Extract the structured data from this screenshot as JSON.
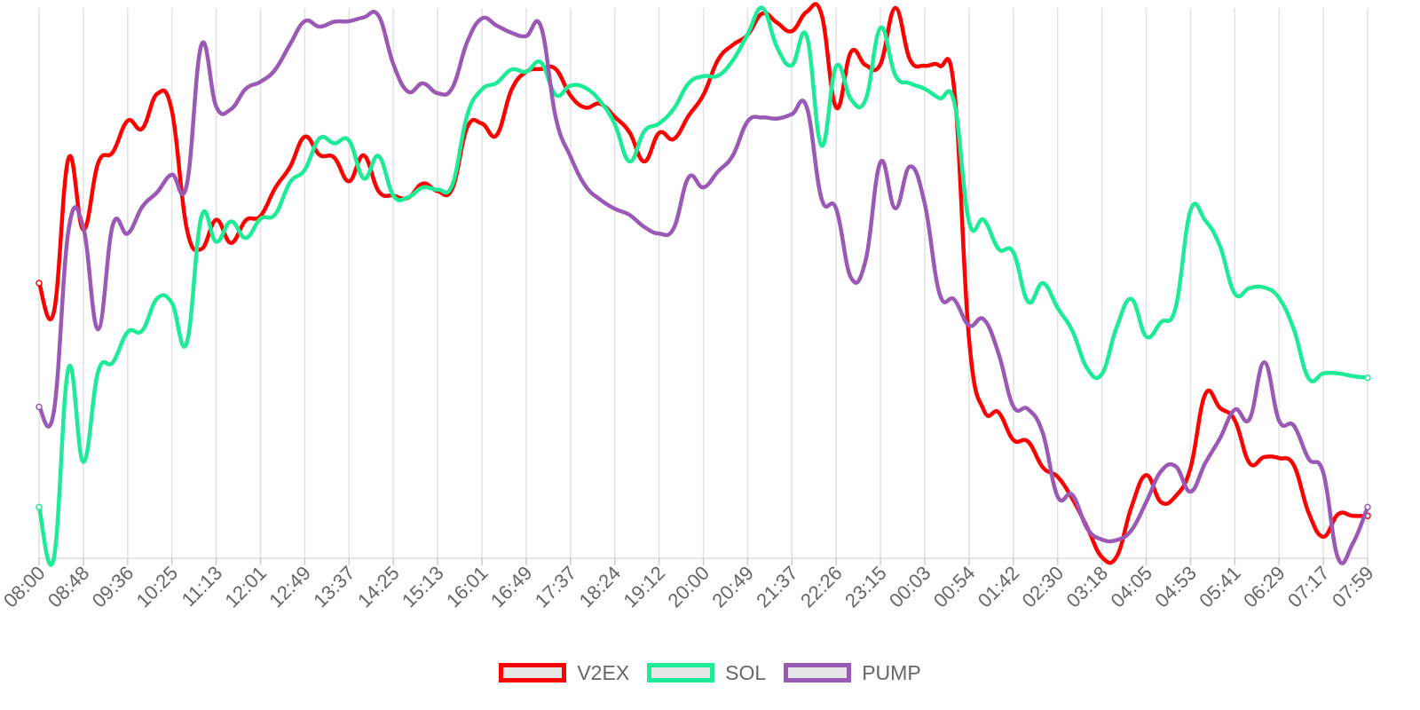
{
  "chart_data": {
    "type": "line",
    "x_ticks": [
      "08:00",
      "08:48",
      "09:36",
      "10:25",
      "11:13",
      "12:01",
      "12:49",
      "13:37",
      "14:25",
      "15:13",
      "16:01",
      "16:49",
      "17:37",
      "18:24",
      "19:12",
      "20:00",
      "20:49",
      "21:37",
      "22:26",
      "23:15",
      "00:03",
      "00:54",
      "01:42",
      "02:30",
      "03:18",
      "04:05",
      "04:53",
      "05:41",
      "06:29",
      "07:17",
      "07:59"
    ],
    "ylim": [
      0,
      100
    ],
    "grid_vertical": true,
    "legend_position": "bottom-center",
    "series": [
      {
        "name": "V2EX",
        "color": "#ff0000",
        "values": [
          50.0,
          44.7,
          72.7,
          59.7,
          71.8,
          73.8,
          79.5,
          78.1,
          84.4,
          81.3,
          60.0,
          56.2,
          61.5,
          57.3,
          61.4,
          62.2,
          67.3,
          71.1,
          76.6,
          73.3,
          72.8,
          68.5,
          73.2,
          66.7,
          65.9,
          65.5,
          68.1,
          66.7,
          67.2,
          78.3,
          79.0,
          76.9,
          85.1,
          88.4,
          88.9,
          88.9,
          84.1,
          81.9,
          82.6,
          80.2,
          77.4,
          72.1,
          77.3,
          76.2,
          80.4,
          84.2,
          90.6,
          93.3,
          95.1,
          99.0,
          97.3,
          95.8,
          99.3,
          98.9,
          81.9,
          92.0,
          89.6,
          89.8,
          100.0,
          90.6,
          89.5,
          89.5,
          85.1,
          39.8,
          26.9,
          26.5,
          21.5,
          21.2,
          16.5,
          14.8,
          10.8,
          5.6,
          0.2,
          0.3,
          9.3,
          15.1,
          10.2,
          11.3,
          16.4,
          29.8,
          27.3,
          25.1,
          17.3,
          18.4,
          18.2,
          16.9,
          8.3,
          3.9,
          8.0,
          7.7,
          7.7
        ]
      },
      {
        "name": "SOL",
        "color": "#1eeb98",
        "values": [
          9.3,
          0.0,
          34.6,
          17.5,
          33.9,
          35.6,
          41.1,
          41.4,
          47.2,
          46.4,
          39.1,
          62.1,
          57.5,
          61.2,
          58.2,
          61.7,
          62.5,
          68.3,
          70.6,
          76.3,
          75.4,
          75.9,
          69.0,
          73.1,
          65.9,
          65.6,
          67.4,
          67.0,
          67.9,
          80.5,
          85.2,
          86.4,
          88.8,
          88.4,
          90.1,
          84.2,
          85.9,
          85.5,
          83.1,
          78.9,
          72.1,
          77.6,
          79.0,
          81.7,
          86.3,
          87.6,
          87.7,
          90.5,
          95.2,
          100.0,
          92.8,
          89.6,
          94.9,
          75.0,
          89.4,
          83.4,
          83.4,
          96.4,
          87.8,
          86.3,
          85.3,
          83.6,
          82.8,
          61.1,
          61.5,
          56.2,
          55.6,
          46.6,
          50.0,
          45.5,
          41.3,
          34.5,
          33.5,
          42.0,
          47.1,
          40.3,
          42.9,
          45.6,
          63.2,
          61.4,
          56.7,
          48.1,
          49.1,
          49.2,
          47.3,
          41.6,
          32.7,
          33.6,
          33.6,
          33.1,
          32.8
        ]
      },
      {
        "name": "PUMP",
        "color": "#9b59b6",
        "values": [
          27.5,
          26.6,
          59.7,
          60.1,
          41.6,
          60.6,
          59.0,
          63.9,
          66.5,
          69.7,
          67.8,
          93.3,
          82.1,
          81.6,
          85.3,
          86.6,
          88.8,
          93.4,
          97.6,
          96.6,
          97.5,
          97.6,
          98.3,
          98.6,
          89.8,
          84.8,
          86.3,
          84.5,
          85.5,
          93.8,
          98.1,
          96.8,
          95.5,
          94.9,
          96.6,
          80.1,
          73.0,
          67.7,
          65.2,
          63.5,
          62.4,
          60.2,
          59.0,
          60.0,
          69.2,
          67.4,
          70.3,
          73.2,
          79.4,
          80.1,
          79.9,
          80.7,
          82.0,
          65.4,
          63.5,
          51.0,
          54.2,
          72.0,
          63.6,
          71.2,
          64.4,
          48.1,
          47.0,
          42.3,
          43.4,
          37.2,
          27.6,
          27.1,
          22.7,
          11.2,
          11.5,
          5.4,
          3.4,
          3.3,
          5.1,
          10.2,
          15.8,
          16.7,
          12.1,
          17.3,
          21.8,
          27.0,
          25.3,
          35.6,
          25.0,
          24.1,
          18.1,
          15.5,
          0.0,
          2.7,
          9.3
        ]
      }
    ]
  }
}
